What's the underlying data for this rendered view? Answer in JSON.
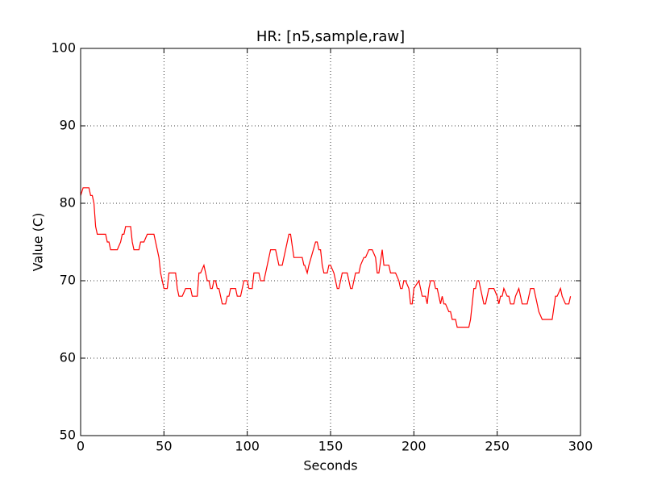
{
  "chart_data": {
    "type": "line",
    "title": "HR: [n5,sample,raw]",
    "xlabel": "Seconds",
    "ylabel": "Value (C)",
    "x": [
      0,
      1.5,
      5,
      6,
      7,
      8,
      9,
      10,
      15,
      16,
      17,
      18,
      22,
      24,
      25,
      26,
      27,
      30,
      31,
      32,
      35,
      36,
      38,
      40,
      44,
      47,
      48,
      49,
      50,
      52,
      53,
      57,
      58,
      59,
      61,
      63,
      66,
      67,
      70,
      71,
      72,
      74,
      75,
      76,
      77,
      78,
      79,
      80,
      81,
      82,
      83,
      85,
      87,
      88,
      89,
      90,
      93,
      94,
      96,
      97,
      98,
      100,
      101,
      103,
      104,
      107,
      108,
      110,
      114,
      117,
      119,
      121,
      124,
      125,
      126,
      128,
      133,
      134,
      134.5,
      136,
      137,
      141,
      142,
      143,
      144,
      145,
      146,
      148,
      149,
      150,
      152,
      153,
      154,
      155,
      157,
      160,
      161,
      162,
      163,
      165,
      167,
      168,
      170,
      171,
      173,
      175,
      177,
      178,
      179,
      181,
      182,
      185,
      186,
      189,
      191,
      192,
      193,
      194,
      195,
      197,
      198,
      199,
      200,
      203,
      204,
      205,
      207,
      208,
      209,
      210,
      212,
      213,
      214,
      215,
      216,
      217,
      218,
      219,
      221,
      222,
      223,
      225,
      226,
      233,
      234,
      235,
      236,
      237,
      238,
      239,
      240,
      242,
      243,
      245,
      248,
      250,
      251,
      252,
      253,
      254,
      256,
      257,
      258,
      260,
      261,
      263,
      264,
      265,
      268,
      270,
      272,
      274,
      275,
      277,
      283,
      285,
      286,
      288,
      289,
      291,
      293,
      294
    ],
    "series": [
      {
        "name": "HR",
        "color": "#ff0000",
        "values": [
          81,
          82,
          82,
          81,
          81,
          80,
          77,
          76,
          76,
          75,
          75,
          74,
          74,
          75,
          76,
          76,
          77,
          77,
          75,
          74,
          74,
          75,
          75,
          76,
          76,
          73,
          71,
          70,
          69,
          69,
          71,
          71,
          69,
          68,
          68,
          69,
          69,
          68,
          68,
          71,
          71,
          72,
          71,
          70,
          70,
          69,
          69,
          70,
          70,
          69,
          69,
          67,
          67,
          68,
          68,
          69,
          69,
          68,
          68,
          69,
          70,
          70,
          69,
          69,
          71,
          71,
          70,
          70,
          74,
          74,
          72,
          72,
          75,
          76,
          76,
          73,
          73,
          72,
          72,
          71,
          72,
          75,
          75,
          74,
          74,
          72,
          71,
          71,
          72,
          72,
          71,
          70,
          69,
          69,
          71,
          71,
          70,
          69,
          69,
          71,
          71,
          72,
          73,
          73,
          74,
          74,
          73,
          71,
          71,
          74,
          72,
          72,
          71,
          71,
          70,
          69,
          69,
          70,
          70,
          69,
          67,
          67,
          69,
          70,
          69,
          68,
          68,
          67,
          69,
          70,
          70,
          69,
          69,
          68,
          67,
          68,
          67,
          67,
          66,
          66,
          65,
          65,
          64,
          64,
          65,
          67,
          69,
          69,
          70,
          70,
          69,
          67,
          67,
          69,
          69,
          68,
          67,
          68,
          68,
          69,
          68,
          68,
          67,
          67,
          68,
          69,
          68,
          67,
          67,
          69,
          69,
          67,
          66,
          65,
          65,
          68,
          68,
          69,
          68,
          67,
          67,
          68
        ]
      }
    ],
    "xlim": [
      0,
      300
    ],
    "ylim": [
      50,
      100
    ],
    "xticks": [
      0,
      50,
      100,
      150,
      200,
      250,
      300
    ],
    "yticks": [
      50,
      60,
      70,
      80,
      90,
      100
    ],
    "grid": true
  }
}
